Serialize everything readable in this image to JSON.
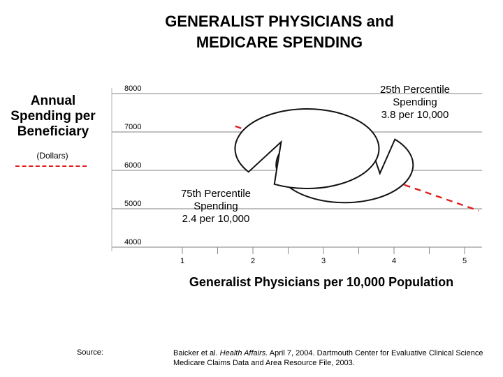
{
  "title_line1": "GENERALIST PHYSICIANS and",
  "title_line2": "MEDICARE SPENDING",
  "y_axis_label": [
    "Annual",
    "Spending per",
    "Beneficiary"
  ],
  "y_axis_unit": "(Dollars)",
  "x_axis_label": "Generalist Physicians per 10,000 Population",
  "callouts": {
    "p25": {
      "line1": "25th Percentile",
      "line2": "Spending",
      "line3": "3.8 per 10,000"
    },
    "p75": {
      "line1": "75th Percentile",
      "line2": "Spending",
      "line3": "2.4 per 10,000"
    }
  },
  "source": {
    "label": "Source:",
    "line1_prefix": "Baicker et al. ",
    "line1_journal": "Health Affairs.",
    "line1_suffix": " April 7, 2004. Dartmouth Center for Evaluative Clinical Science",
    "line2": "Medicare Claims Data and Area Resource File, 2003."
  },
  "chart_data": {
    "type": "line",
    "title": "GENERALIST PHYSICIANS and MEDICARE SPENDING",
    "xlabel": "Generalist Physicians per 10,000 Population",
    "ylabel": "Annual Spending per Beneficiary (Dollars)",
    "xlim": [
      0.5,
      5.3
    ],
    "ylim": [
      4000,
      8000
    ],
    "x_ticks": [
      "1",
      "2",
      "3",
      "4",
      "5"
    ],
    "y_ticks": [
      "4000",
      "5000",
      "6000",
      "7000",
      "8000"
    ],
    "grid": "horizontal",
    "series": [
      {
        "color": "#e01e1e",
        "style": "dashed",
        "x": [
          1.75,
          5.2
        ],
        "y": [
          7150,
          4950
        ]
      }
    ],
    "annotations": [
      {
        "text": "25th Percentile Spending 3.8 per 10,000",
        "x": 3.8,
        "y": 5920
      },
      {
        "text": "75th Percentile Spending 2.4 per 10,000",
        "x": 2.4,
        "y": 6740
      }
    ]
  }
}
